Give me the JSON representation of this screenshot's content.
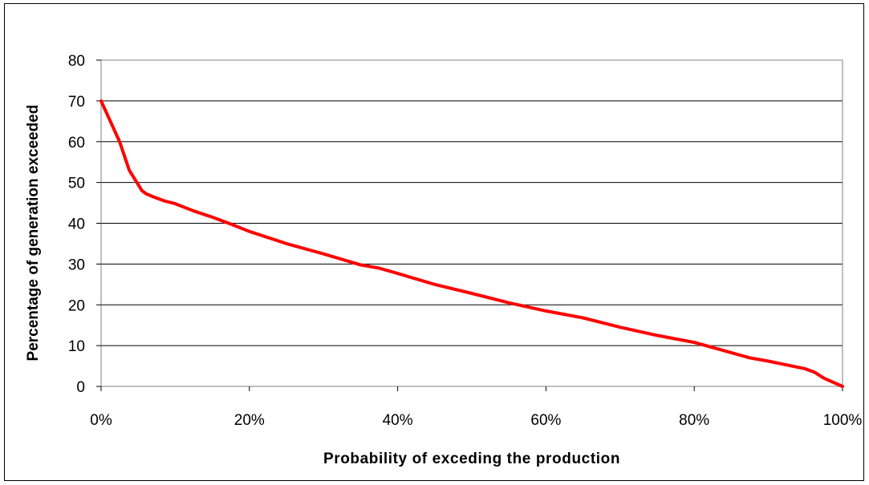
{
  "chart_data": {
    "type": "line",
    "title": "",
    "xlabel": "Probability of exceding the production",
    "ylabel": "Percentage of generation exceeded",
    "xlim": [
      0,
      100
    ],
    "ylim": [
      0,
      80
    ],
    "x_ticks": [
      0,
      20,
      40,
      60,
      80,
      100
    ],
    "x_tick_labels": [
      "0%",
      "20%",
      "40%",
      "60%",
      "80%",
      "100%"
    ],
    "y_ticks": [
      0,
      10,
      20,
      30,
      40,
      50,
      60,
      70,
      80
    ],
    "y_tick_labels": [
      "0",
      "10",
      "20",
      "30",
      "40",
      "50",
      "60",
      "70",
      "80"
    ],
    "grid": "horizontal",
    "legend": "none",
    "series": [
      {
        "color": "#ff0000",
        "x": [
          0,
          2.5,
          3.8,
          5,
          5.5,
          6.1,
          7,
          8.5,
          10,
          12.5,
          15,
          17.5,
          20,
          25,
          30,
          35,
          37.5,
          40,
          45,
          50,
          55,
          60,
          65,
          70,
          75,
          80,
          87.5,
          90,
          95,
          96.2,
          97.5,
          100
        ],
        "y": [
          70,
          60,
          53,
          49.5,
          48,
          47.2,
          46.5,
          45.5,
          44.8,
          43,
          41.5,
          39.8,
          38,
          35,
          32.5,
          29.8,
          29,
          27.7,
          25,
          22.8,
          20.5,
          18.5,
          16.8,
          14.5,
          12.5,
          10.8,
          7,
          6.2,
          4.3,
          3.5,
          2,
          0
        ]
      }
    ]
  }
}
